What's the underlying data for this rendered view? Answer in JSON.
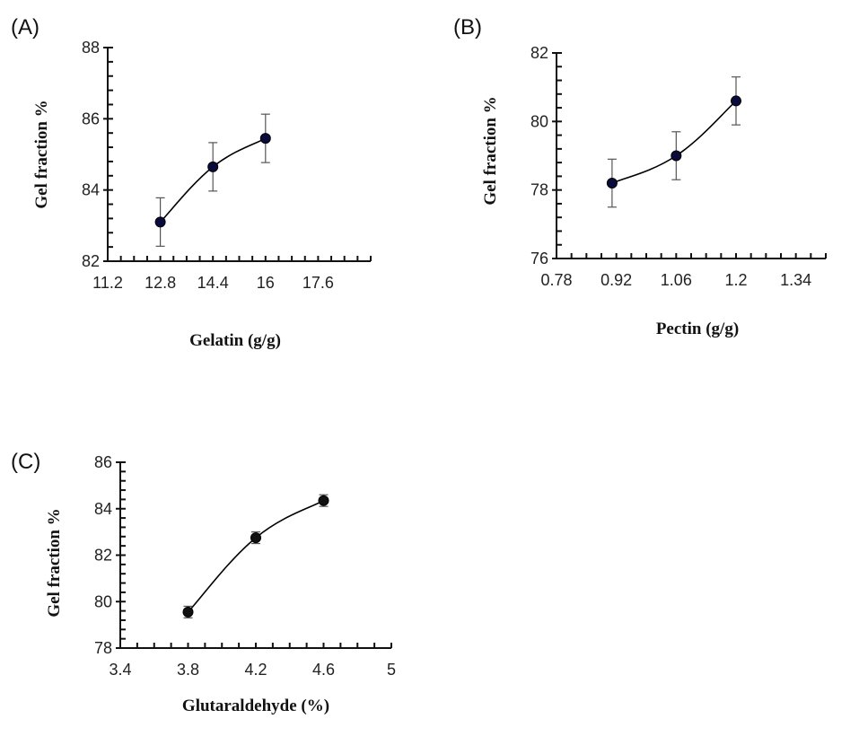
{
  "chart_data": [
    {
      "type": "line",
      "panel_label": "(A)",
      "xlabel": "Gelatin  (g/g)",
      "ylabel": "Gel fraction %",
      "xlim": [
        11.2,
        19.2
      ],
      "ylim": [
        82,
        88
      ],
      "x_major_ticks": [
        11.2,
        12.8,
        14.4,
        16,
        17.6
      ],
      "x_tick_labels": [
        "11.2",
        "12.8",
        "14.4",
        "16",
        "17.6"
      ],
      "x_minor_step": 0.4,
      "y_major_ticks": [
        82,
        84,
        86,
        88
      ],
      "y_tick_labels": [
        "82",
        "84",
        "86",
        "88"
      ],
      "y_minor_step": 0.4,
      "marker_color": "#0a0a3c",
      "series": [
        {
          "name": "Gel fraction",
          "x": [
            12.8,
            14.4,
            16
          ],
          "y": [
            83.1,
            84.65,
            85.45
          ],
          "error": [
            0.68,
            0.68,
            0.68
          ]
        }
      ]
    },
    {
      "type": "line",
      "panel_label": "(B)",
      "xlabel": "Pectin (g/g)",
      "ylabel": "Gel fraction %",
      "xlim": [
        0.78,
        1.41
      ],
      "ylim": [
        76,
        82
      ],
      "x_major_ticks": [
        0.78,
        0.92,
        1.06,
        1.2,
        1.34
      ],
      "x_tick_labels": [
        "0.78",
        "0.92",
        "1.06",
        "1.2",
        "1.34"
      ],
      "x_minor_step": 0.035,
      "y_major_ticks": [
        76,
        78,
        80,
        82
      ],
      "y_tick_labels": [
        "76",
        "78",
        "80",
        "82"
      ],
      "y_minor_step": 0.4,
      "marker_color": "#0a0a3c",
      "series": [
        {
          "name": "Gel fraction",
          "x": [
            0.91,
            1.06,
            1.2
          ],
          "y": [
            78.2,
            79.0,
            80.6
          ],
          "error": [
            0.7,
            0.7,
            0.7
          ]
        }
      ]
    },
    {
      "type": "line",
      "panel_label": "(C)",
      "xlabel": "Glutaraldehyde (%)",
      "ylabel": "Gel fraction %",
      "xlim": [
        3.4,
        5.0
      ],
      "ylim": [
        78,
        86
      ],
      "x_major_ticks": [
        3.4,
        3.8,
        4.2,
        4.6,
        5.0
      ],
      "x_tick_labels": [
        "3.4",
        "3.8",
        "4.2",
        "4.6",
        "5"
      ],
      "x_minor_step": 0.1,
      "y_major_ticks": [
        78,
        80,
        82,
        84,
        86
      ],
      "y_tick_labels": [
        "78",
        "80",
        "82",
        "84",
        "86"
      ],
      "y_minor_step": 0.4,
      "marker_color": "#111111",
      "series": [
        {
          "name": "Gel fraction",
          "x": [
            3.8,
            4.2,
            4.6
          ],
          "y": [
            79.55,
            82.75,
            84.35
          ],
          "error": [
            0.25,
            0.25,
            0.25
          ]
        }
      ]
    }
  ]
}
